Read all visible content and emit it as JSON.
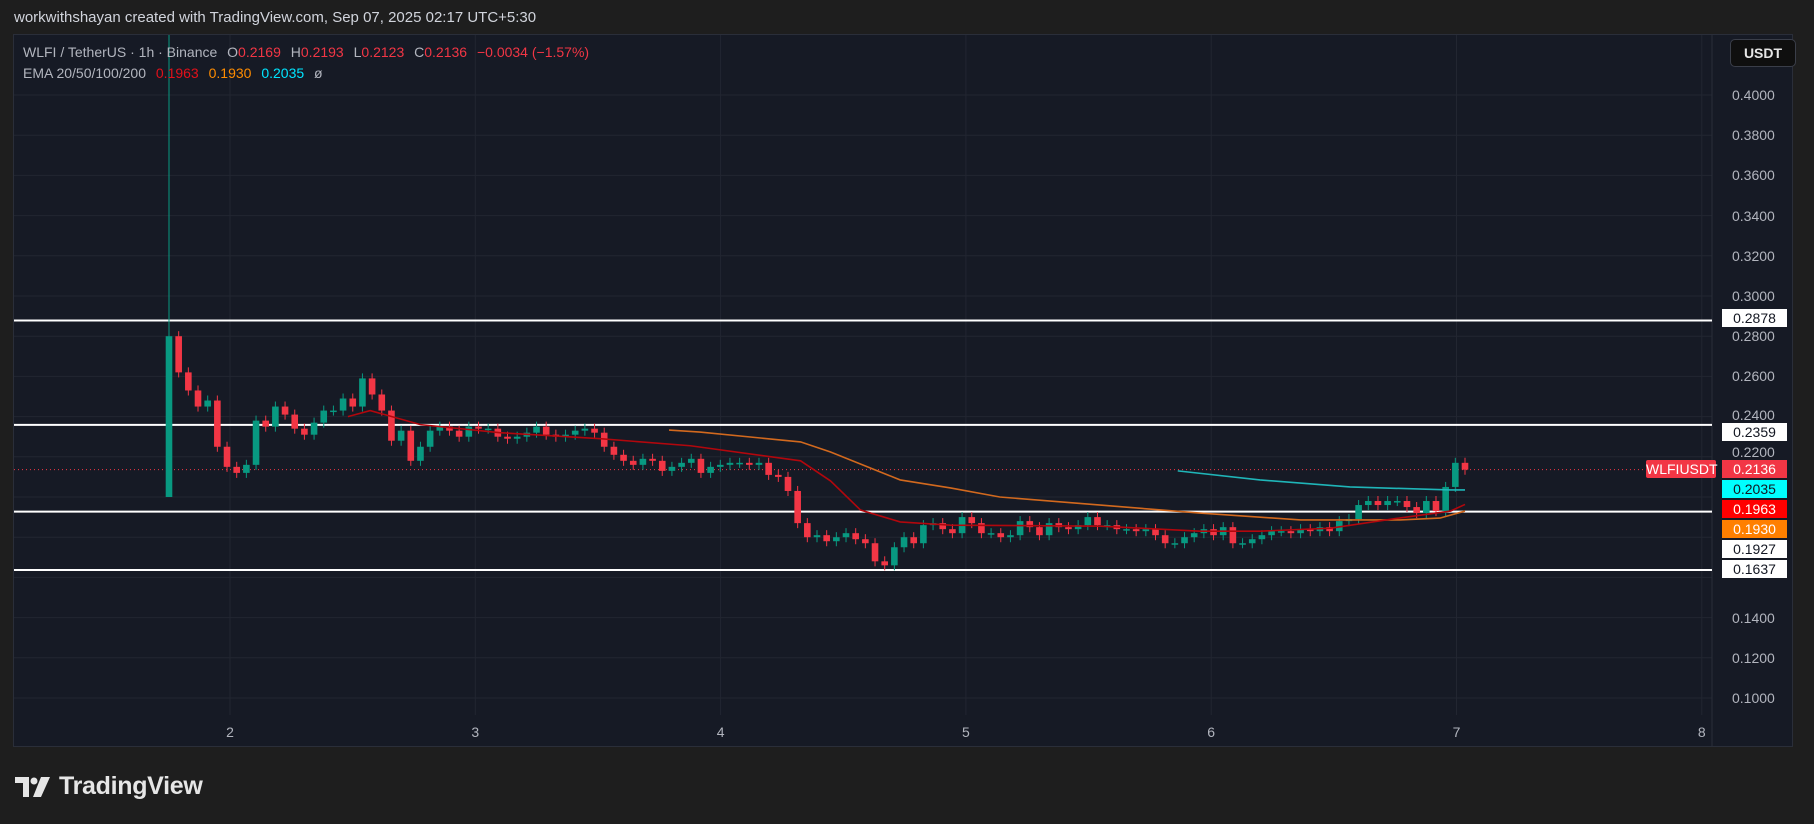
{
  "credit": "workwithshayan created with TradingView.com, Sep 07, 2025 02:17 UTC+5:30",
  "legend": {
    "symbol": "WLFI / TetherUS · 1h · Binance",
    "o_label": "O",
    "o": "0.2169",
    "h_label": "H",
    "h": "0.2193",
    "l_label": "L",
    "l": "0.2123",
    "c_label": "C",
    "c": "0.2136",
    "change": "−0.0034 (−1.57%)",
    "ema_label": "EMA 20/50/100/200",
    "ema20": "0.1963",
    "ema50": "0.1930",
    "ema100": "0.2035",
    "ema200": "ø"
  },
  "currency_button": "USDT",
  "price_ticks": [
    "0.4000",
    "0.3800",
    "0.3600",
    "0.3400",
    "0.3200",
    "0.3000",
    "0.2800",
    "0.2600",
    "0.2400",
    "0.2200",
    "0.1400",
    "0.1200",
    "0.1000"
  ],
  "x_ticks": [
    "2",
    "3",
    "4",
    "5",
    "6",
    "7",
    "8"
  ],
  "symbol_tag": "WLFIUSDT",
  "tags": [
    {
      "text": "0.2878",
      "bg": "#ffffff",
      "fg": "#131722"
    },
    {
      "text": "0.2359",
      "bg": "#ffffff",
      "fg": "#131722"
    },
    {
      "text": "0.2136",
      "bg": "#f23645",
      "fg": "#ffffff"
    },
    {
      "text": "0.2035",
      "bg": "#00ffff",
      "fg": "#131722"
    },
    {
      "text": "0.1963",
      "bg": "#ff0000",
      "fg": "#ffffff"
    },
    {
      "text": "0.1930",
      "bg": "#ff7f00",
      "fg": "#ffffff"
    },
    {
      "text": "0.1927",
      "bg": "#ffffff",
      "fg": "#131722"
    },
    {
      "text": "0.1637",
      "bg": "#ffffff",
      "fg": "#131722"
    }
  ],
  "logo_text": "TradingView",
  "colors": {
    "up": "#089981",
    "down": "#f23645",
    "ema20": "#b2070d",
    "ema50": "#d2691e",
    "ema100": "#1fb5b8",
    "level": "#ffffff",
    "grid": "#222631"
  },
  "chart_data": {
    "type": "candlestick",
    "title": "WLFI / TetherUS · 1h · Binance",
    "ylim": [
      0.08,
      0.43
    ],
    "x_days": [
      2,
      3,
      4,
      5,
      6,
      7,
      8
    ],
    "first_open": 0.2,
    "first_high": 0.45,
    "closes": [
      0.28,
      0.262,
      0.253,
      0.245,
      0.248,
      0.225,
      0.215,
      0.212,
      0.216,
      0.238,
      0.235,
      0.245,
      0.241,
      0.234,
      0.231,
      0.237,
      0.243,
      0.243,
      0.249,
      0.245,
      0.259,
      0.251,
      0.243,
      0.228,
      0.233,
      0.218,
      0.225,
      0.233,
      0.235,
      0.233,
      0.23,
      0.235,
      0.234,
      0.234,
      0.23,
      0.229,
      0.23,
      0.232,
      0.235,
      0.231,
      0.23,
      0.231,
      0.233,
      0.234,
      0.232,
      0.225,
      0.221,
      0.218,
      0.216,
      0.219,
      0.218,
      0.213,
      0.215,
      0.217,
      0.219,
      0.212,
      0.215,
      0.216,
      0.217,
      0.217,
      0.216,
      0.217,
      0.211,
      0.21,
      0.203,
      0.187,
      0.18,
      0.181,
      0.178,
      0.18,
      0.182,
      0.179,
      0.177,
      0.168,
      0.166,
      0.175,
      0.18,
      0.177,
      0.186,
      0.187,
      0.184,
      0.182,
      0.19,
      0.187,
      0.182,
      0.182,
      0.18,
      0.181,
      0.188,
      0.185,
      0.181,
      0.187,
      0.185,
      0.184,
      0.186,
      0.19,
      0.186,
      0.186,
      0.184,
      0.184,
      0.183,
      0.184,
      0.181,
      0.177,
      0.177,
      0.18,
      0.182,
      0.184,
      0.181,
      0.185,
      0.177,
      0.177,
      0.179,
      0.181,
      0.183,
      0.183,
      0.182,
      0.184,
      0.183,
      0.185,
      0.183,
      0.188,
      0.189,
      0.196,
      0.198,
      0.196,
      0.198,
      0.198,
      0.195,
      0.192,
      0.198,
      0.193,
      0.205,
      0.217,
      0.2136
    ],
    "ema20": [
      [
        18.5,
        0.24
      ],
      [
        20.8,
        0.243
      ],
      [
        26,
        0.236
      ],
      [
        34.2,
        0.232
      ],
      [
        44.6,
        0.229
      ],
      [
        53.9,
        0.2255
      ],
      [
        65.3,
        0.218
      ],
      [
        68.4,
        0.208
      ],
      [
        71.5,
        0.1935
      ],
      [
        75.6,
        0.1876
      ],
      [
        80.8,
        0.186
      ],
      [
        96.3,
        0.1855
      ],
      [
        106.6,
        0.183
      ],
      [
        112.8,
        0.183
      ],
      [
        120.1,
        0.1845
      ],
      [
        127.3,
        0.1896
      ],
      [
        132.5,
        0.193
      ],
      [
        134,
        0.1963
      ]
    ],
    "ema50": [
      [
        51.7,
        0.2333
      ],
      [
        54.9,
        0.2323
      ],
      [
        65.3,
        0.2274
      ],
      [
        68.4,
        0.2224
      ],
      [
        75.6,
        0.2085
      ],
      [
        80.8,
        0.2045
      ],
      [
        85.9,
        0.2
      ],
      [
        96.3,
        0.196
      ],
      [
        101.4,
        0.194
      ],
      [
        106.6,
        0.192
      ],
      [
        117,
        0.1886
      ],
      [
        127.3,
        0.1886
      ],
      [
        131.4,
        0.1895
      ],
      [
        134,
        0.193
      ]
    ],
    "ema100": [
      [
        104.3,
        0.213
      ],
      [
        112.8,
        0.2085
      ],
      [
        122.1,
        0.205
      ],
      [
        132.5,
        0.2035
      ],
      [
        134,
        0.2035
      ]
    ],
    "levels": [
      0.2878,
      0.2359,
      0.1927,
      0.1637
    ],
    "last_price": 0.2136
  }
}
